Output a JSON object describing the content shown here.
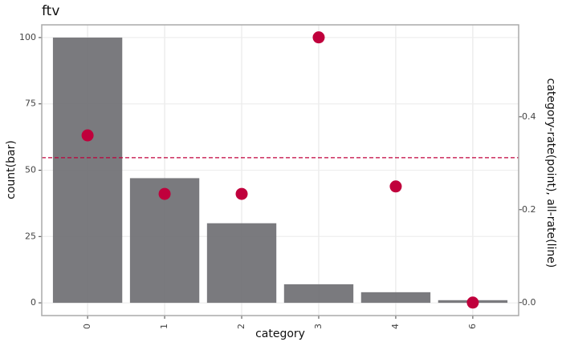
{
  "chart_data": {
    "type": "bar",
    "title": "ftv",
    "x_label": "category",
    "y_label": "count(bar)",
    "y2_label": "category-rate(point), all-rate(line)",
    "categories": [
      "0",
      "1",
      "2",
      "3",
      "4",
      "6"
    ],
    "series": [
      {
        "name": "count",
        "type": "bar",
        "color": "#6b6c70",
        "values": [
          100,
          47,
          30,
          7,
          4,
          1
        ]
      },
      {
        "name": "category-rate",
        "type": "point",
        "axis": "y2",
        "color": "#c0003c",
        "values": [
          0.36,
          0.234,
          0.234,
          0.571,
          0.25,
          0
        ]
      }
    ],
    "all_rate": 0.312,
    "all_rate_color": "#c0003c",
    "ylim": [
      -4.8,
      104.8
    ],
    "yticks": [
      0,
      25,
      50,
      75,
      100
    ],
    "y2lim": [
      -0.028,
      0.598
    ],
    "y2ticks": [
      {
        "value": 0,
        "label": "0.0"
      },
      0.2,
      0.4
    ],
    "grid": true
  }
}
